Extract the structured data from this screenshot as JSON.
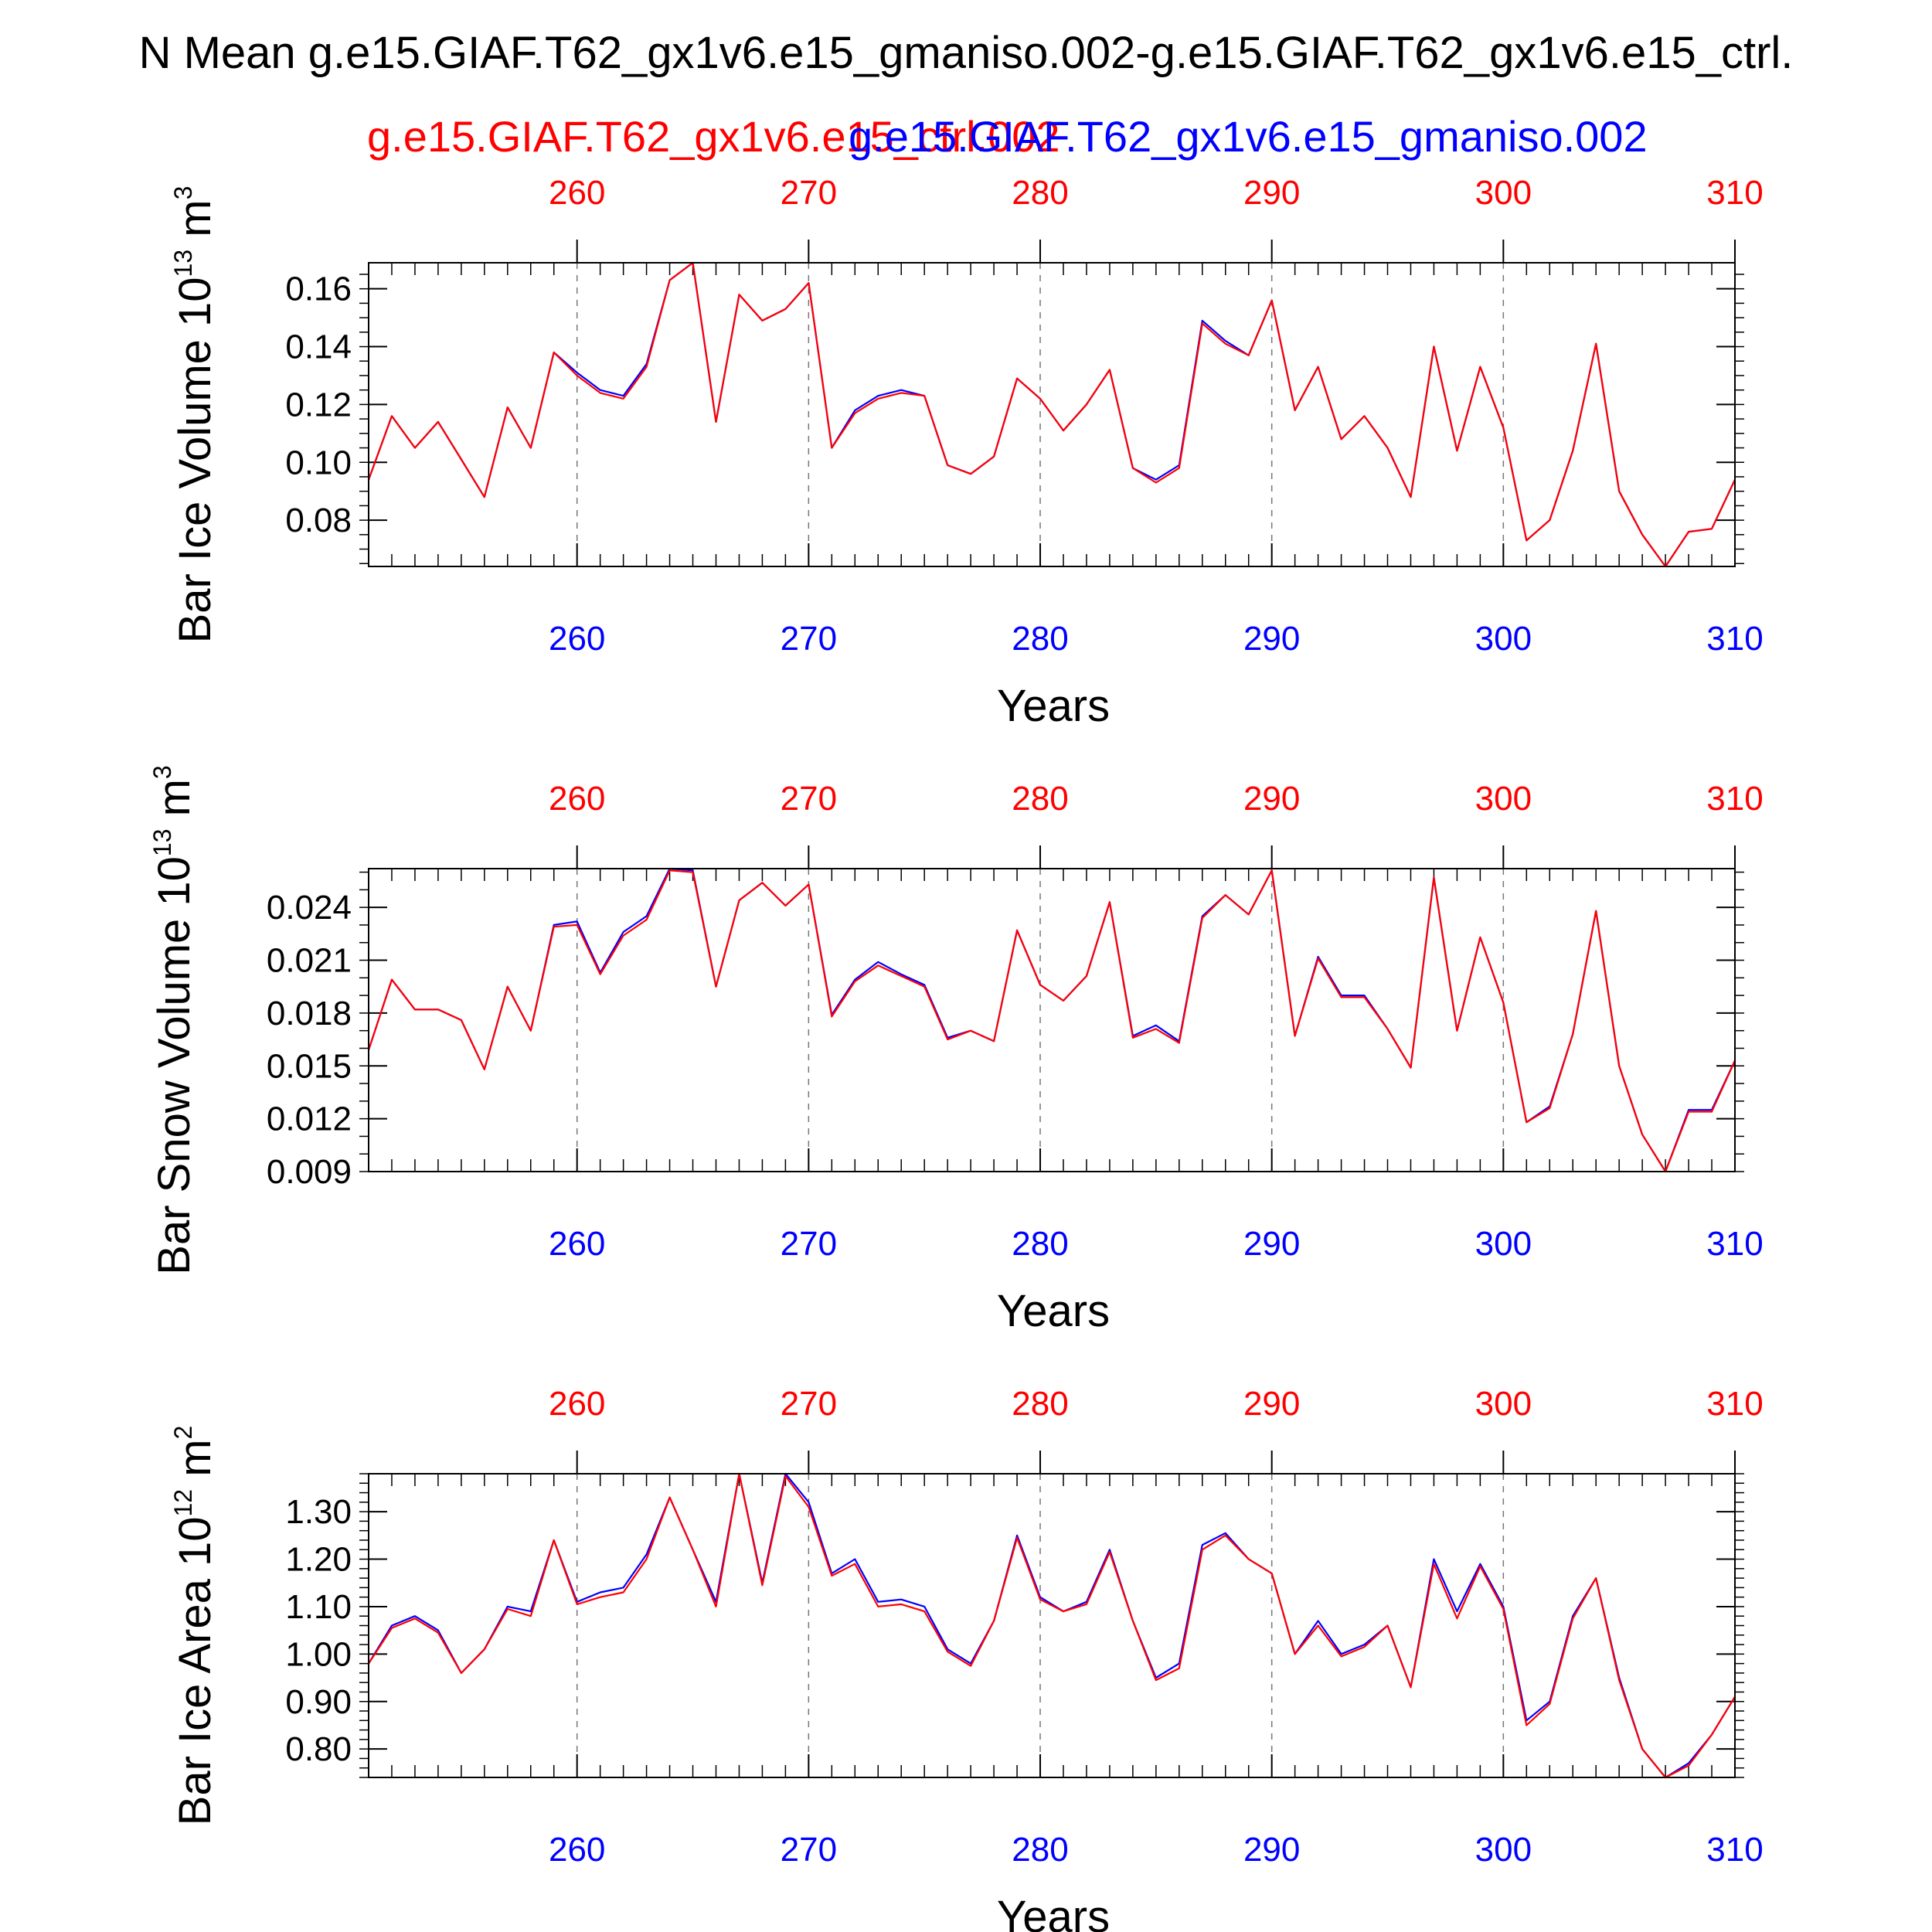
{
  "figure": {
    "title": "N Mean g.e15.GIAF.T62_gx1v6.e15_gmaniso.002-g.e15.GIAF.T62_gx1v6.e15_ctrl.",
    "legend": [
      {
        "label": "g.e15.GIAF.T62_gx1v6.e15_ctrl.002",
        "color": "#ff0000"
      },
      {
        "label": "g.e15.GIAF.T62_gx1v6.e15_gmaniso.002",
        "color": "#0000ff"
      }
    ]
  },
  "chart_data": [
    {
      "type": "line",
      "id": "ice-volume",
      "title": "",
      "ylabel": "Bar Ice Volume 10",
      "ylabel_exp": "13",
      "ylabel_unit": "m",
      "ylabel_unit_exp": "3",
      "xlabel": "Years",
      "xlim": [
        251,
        310
      ],
      "ylim": [
        0.064,
        0.169
      ],
      "yticks": [
        0.08,
        0.1,
        0.12,
        0.14,
        0.16
      ],
      "ytick_labels": [
        "0.08",
        "0.10",
        "0.12",
        "0.14",
        "0.16"
      ],
      "yminor_step": 0.005,
      "xticks": [
        260,
        270,
        280,
        290,
        300,
        310
      ],
      "xtick_labels_top": [
        "260",
        "270",
        "280",
        "290",
        "300",
        "310"
      ],
      "xtick_labels_bottom": [
        "260",
        "270",
        "280",
        "290",
        "300",
        "310"
      ],
      "grid": "dashed vertical at major x ticks",
      "series": [
        {
          "name": "g.e15.GIAF.T62_gx1v6.e15_gmaniso.002",
          "color": "#0000ff",
          "values": [
            0.094,
            0.116,
            0.105,
            0.114,
            0.101,
            0.088,
            0.119,
            0.105,
            0.138,
            0.131,
            0.125,
            0.123,
            0.134,
            0.163,
            0.169,
            0.114,
            0.158,
            0.149,
            0.153,
            0.162,
            0.105,
            0.118,
            0.123,
            0.125,
            0.123,
            0.099,
            0.096,
            0.102,
            0.129,
            0.122,
            0.111,
            0.12,
            0.132,
            0.098,
            0.094,
            0.099,
            0.149,
            0.142,
            0.137,
            0.156,
            0.118,
            0.133,
            0.108,
            0.116,
            0.105,
            0.088,
            0.14,
            0.104,
            0.133,
            0.112,
            0.073,
            0.08,
            0.104,
            0.141,
            0.09,
            0.075,
            0.064,
            0.076,
            0.077,
            0.094
          ]
        },
        {
          "name": "g.e15.GIAF.T62_gx1v6.e15_ctrl.002",
          "color": "#ff0000",
          "values": [
            0.094,
            0.116,
            0.105,
            0.114,
            0.101,
            0.088,
            0.119,
            0.105,
            0.138,
            0.13,
            0.124,
            0.122,
            0.133,
            0.163,
            0.169,
            0.114,
            0.158,
            0.149,
            0.153,
            0.162,
            0.105,
            0.117,
            0.122,
            0.124,
            0.123,
            0.099,
            0.096,
            0.102,
            0.129,
            0.122,
            0.111,
            0.12,
            0.132,
            0.098,
            0.093,
            0.098,
            0.148,
            0.141,
            0.137,
            0.156,
            0.118,
            0.133,
            0.108,
            0.116,
            0.105,
            0.088,
            0.14,
            0.104,
            0.133,
            0.112,
            0.073,
            0.08,
            0.104,
            0.141,
            0.09,
            0.075,
            0.064,
            0.076,
            0.077,
            0.094
          ]
        }
      ]
    },
    {
      "type": "line",
      "id": "snow-volume",
      "title": "",
      "ylabel": "Bar Snow Volume 10",
      "ylabel_exp": "13",
      "ylabel_unit": "m",
      "ylabel_unit_exp": "3",
      "xlabel": "Years",
      "xlim": [
        251,
        310
      ],
      "ylim": [
        0.009,
        0.0262
      ],
      "yticks": [
        0.009,
        0.012,
        0.015,
        0.018,
        0.021,
        0.024
      ],
      "ytick_labels": [
        "0.009",
        "0.012",
        "0.015",
        "0.018",
        "0.021",
        "0.024"
      ],
      "yminor_step": 0.001,
      "xticks": [
        260,
        270,
        280,
        290,
        300,
        310
      ],
      "xtick_labels_top": [
        "260",
        "270",
        "280",
        "290",
        "300",
        "310"
      ],
      "xtick_labels_bottom": [
        "260",
        "270",
        "280",
        "290",
        "300",
        "310"
      ],
      "grid": "dashed vertical at major x ticks",
      "series": [
        {
          "name": "g.e15.GIAF.T62_gx1v6.e15_gmaniso.002",
          "color": "#0000ff",
          "values": [
            0.0159,
            0.0199,
            0.0182,
            0.0182,
            0.0176,
            0.0148,
            0.0195,
            0.017,
            0.023,
            0.0232,
            0.0203,
            0.0226,
            0.0235,
            0.0262,
            0.0261,
            0.0195,
            0.0244,
            0.0254,
            0.0241,
            0.0253,
            0.0179,
            0.0199,
            0.0209,
            0.0202,
            0.0196,
            0.0166,
            0.017,
            0.0164,
            0.0227,
            0.0196,
            0.0187,
            0.0201,
            0.0243,
            0.0167,
            0.0173,
            0.0164,
            0.0235,
            0.0247,
            0.0236,
            0.0261,
            0.0167,
            0.0212,
            0.019,
            0.019,
            0.0171,
            0.0149,
            0.0257,
            0.017,
            0.0223,
            0.0186,
            0.0118,
            0.0127,
            0.0168,
            0.0238,
            0.015,
            0.0111,
            0.009,
            0.0125,
            0.0125,
            0.0153
          ]
        },
        {
          "name": "g.e15.GIAF.T62_gx1v6.e15_ctrl.002",
          "color": "#ff0000",
          "values": [
            0.0159,
            0.0199,
            0.0182,
            0.0182,
            0.0176,
            0.0148,
            0.0195,
            0.017,
            0.0229,
            0.023,
            0.0202,
            0.0224,
            0.0233,
            0.0261,
            0.026,
            0.0195,
            0.0244,
            0.0254,
            0.0241,
            0.0253,
            0.0178,
            0.0198,
            0.0207,
            0.0201,
            0.0195,
            0.0165,
            0.017,
            0.0164,
            0.0227,
            0.0196,
            0.0187,
            0.0201,
            0.0243,
            0.0166,
            0.0171,
            0.0163,
            0.0234,
            0.0247,
            0.0236,
            0.0261,
            0.0167,
            0.0211,
            0.0189,
            0.0189,
            0.0171,
            0.0149,
            0.0257,
            0.017,
            0.0223,
            0.0186,
            0.0118,
            0.0126,
            0.0168,
            0.0238,
            0.015,
            0.0111,
            0.009,
            0.0124,
            0.0124,
            0.0153
          ]
        }
      ]
    },
    {
      "type": "line",
      "id": "ice-area",
      "title": "",
      "ylabel": "Bar Ice Area 10",
      "ylabel_exp": "12",
      "ylabel_unit": "m",
      "ylabel_unit_exp": "2",
      "xlabel": "Years",
      "xlim": [
        251,
        310
      ],
      "ylim": [
        0.74,
        1.38
      ],
      "yticks": [
        0.8,
        0.9,
        1.0,
        1.1,
        1.2,
        1.3
      ],
      "ytick_labels": [
        "0.80",
        "0.90",
        "1.00",
        "1.10",
        "1.20",
        "1.30"
      ],
      "yminor_step": 0.02,
      "xticks": [
        260,
        270,
        280,
        290,
        300,
        310
      ],
      "xtick_labels_top": [
        "260",
        "270",
        "280",
        "290",
        "300",
        "310"
      ],
      "xtick_labels_bottom": [
        "260",
        "270",
        "280",
        "290",
        "300",
        "310"
      ],
      "grid": "dashed vertical at major x ticks",
      "series": [
        {
          "name": "g.e15.GIAF.T62_gx1v6.e15_gmaniso.002",
          "color": "#0000ff",
          "values": [
            0.98,
            1.06,
            1.08,
            1.05,
            0.96,
            1.01,
            1.1,
            1.09,
            1.24,
            1.11,
            1.13,
            1.14,
            1.21,
            1.33,
            1.22,
            1.11,
            1.38,
            1.15,
            1.38,
            1.32,
            1.17,
            1.2,
            1.11,
            1.115,
            1.1,
            1.01,
            0.98,
            1.07,
            1.25,
            1.12,
            1.09,
            1.11,
            1.22,
            1.07,
            0.95,
            0.98,
            1.23,
            1.255,
            1.2,
            1.17,
            1.0,
            1.07,
            1.0,
            1.02,
            1.06,
            0.93,
            1.2,
            1.09,
            1.19,
            1.1,
            0.86,
            0.9,
            1.08,
            1.16,
            0.95,
            0.8,
            0.74,
            0.77,
            0.83,
            0.91
          ]
        },
        {
          "name": "g.e15.GIAF.T62_gx1v6.e15_ctrl.002",
          "color": "#ff0000",
          "values": [
            0.98,
            1.055,
            1.075,
            1.045,
            0.96,
            1.01,
            1.095,
            1.08,
            1.24,
            1.105,
            1.12,
            1.13,
            1.2,
            1.33,
            1.22,
            1.1,
            1.38,
            1.145,
            1.375,
            1.31,
            1.165,
            1.19,
            1.1,
            1.105,
            1.09,
            1.005,
            0.975,
            1.07,
            1.245,
            1.115,
            1.09,
            1.105,
            1.215,
            1.07,
            0.945,
            0.97,
            1.22,
            1.25,
            1.2,
            1.17,
            1.0,
            1.06,
            0.995,
            1.015,
            1.06,
            0.93,
            1.19,
            1.075,
            1.185,
            1.095,
            0.85,
            0.895,
            1.075,
            1.16,
            0.945,
            0.8,
            0.74,
            0.765,
            0.83,
            0.91
          ]
        }
      ]
    }
  ]
}
